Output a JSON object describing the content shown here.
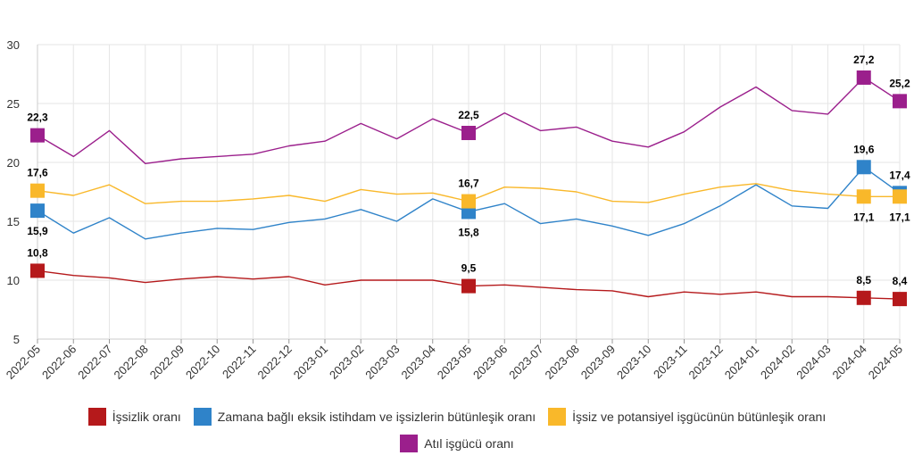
{
  "chart_data": {
    "type": "line",
    "title": "",
    "xlabel": "",
    "ylabel": "",
    "ylim": [
      5,
      30
    ],
    "yticks": [
      5,
      10,
      15,
      20,
      25,
      30
    ],
    "grid": true,
    "legend_position": "bottom",
    "categories": [
      "2022-05",
      "2022-06",
      "2022-07",
      "2022-08",
      "2022-09",
      "2022-10",
      "2022-11",
      "2022-12",
      "2023-01",
      "2023-02",
      "2023-03",
      "2023-04",
      "2023-05",
      "2023-06",
      "2023-07",
      "2023-08",
      "2023-09",
      "2023-10",
      "2023-11",
      "2023-12",
      "2024-01",
      "2024-02",
      "2024-03",
      "2024-04",
      "2024-05"
    ],
    "series": [
      {
        "name": "İşsizlik oranı",
        "color": "#b5191b",
        "values": [
          10.8,
          10.4,
          10.2,
          9.8,
          10.1,
          10.3,
          10.1,
          10.3,
          9.6,
          10.0,
          10.0,
          10.0,
          9.5,
          9.6,
          9.4,
          9.2,
          9.1,
          8.6,
          9.0,
          8.8,
          9.0,
          8.6,
          8.6,
          8.5,
          8.4
        ],
        "labels": [
          {
            "index": 0,
            "text": "10,8",
            "pos": "above"
          },
          {
            "index": 12,
            "text": "9,5",
            "pos": "above"
          },
          {
            "index": 23,
            "text": "8,5",
            "pos": "above"
          },
          {
            "index": 24,
            "text": "8,4",
            "pos": "above"
          }
        ]
      },
      {
        "name": "Zamana bağlı eksik istihdam ve işsizlerin bütünleşik oranı",
        "color": "#2f83c9",
        "values": [
          15.9,
          14.0,
          15.3,
          13.5,
          14.0,
          14.4,
          14.3,
          14.9,
          15.2,
          16.0,
          15.0,
          16.9,
          15.8,
          16.5,
          14.8,
          15.2,
          14.6,
          13.8,
          14.8,
          16.3,
          18.1,
          16.3,
          16.1,
          19.6,
          17.4
        ],
        "labels": [
          {
            "index": 0,
            "text": "15,9",
            "pos": "below"
          },
          {
            "index": 12,
            "text": "15,8",
            "pos": "below"
          },
          {
            "index": 23,
            "text": "19,6",
            "pos": "above"
          },
          {
            "index": 24,
            "text": "17,4",
            "pos": "above"
          }
        ]
      },
      {
        "name": "İşsiz ve potansiyel işgücünün bütünleşik oranı",
        "color": "#f9b82a",
        "values": [
          17.6,
          17.2,
          18.1,
          16.5,
          16.7,
          16.7,
          16.9,
          17.2,
          16.7,
          17.7,
          17.3,
          17.4,
          16.7,
          17.9,
          17.8,
          17.5,
          16.7,
          16.6,
          17.3,
          17.9,
          18.2,
          17.6,
          17.3,
          17.1,
          17.1
        ],
        "labels": [
          {
            "index": 0,
            "text": "17,6",
            "pos": "above"
          },
          {
            "index": 12,
            "text": "16,7",
            "pos": "above"
          },
          {
            "index": 23,
            "text": "17,1",
            "pos": "below"
          },
          {
            "index": 24,
            "text": "17,1",
            "pos": "below"
          }
        ]
      },
      {
        "name": "Atıl işgücü oranı",
        "color": "#9b1f8c",
        "values": [
          22.3,
          20.5,
          22.7,
          19.9,
          20.3,
          20.5,
          20.7,
          21.4,
          21.8,
          23.3,
          22.0,
          23.7,
          22.5,
          24.2,
          22.7,
          23.0,
          21.8,
          21.3,
          22.6,
          24.7,
          26.4,
          24.4,
          24.1,
          27.2,
          25.2
        ],
        "labels": [
          {
            "index": 0,
            "text": "22,3",
            "pos": "above"
          },
          {
            "index": 12,
            "text": "22,5",
            "pos": "above"
          },
          {
            "index": 23,
            "text": "27,2",
            "pos": "above"
          },
          {
            "index": 24,
            "text": "25,2",
            "pos": "above"
          }
        ]
      }
    ]
  }
}
